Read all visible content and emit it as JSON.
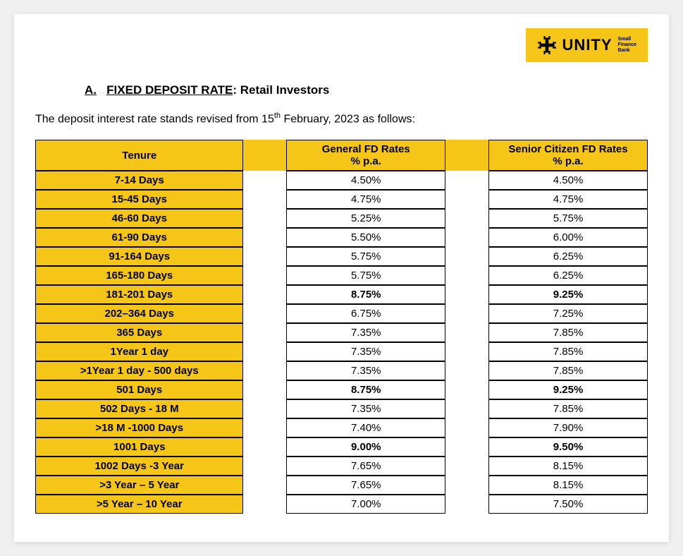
{
  "logo": {
    "brand": "UNITY",
    "subline1": "Small",
    "subline2": "Finance",
    "subline3": "Bank"
  },
  "heading": {
    "prefix": "A.",
    "title": "FIXED DEPOSIT RATE",
    "suffix": ": Retail Investors"
  },
  "intro": {
    "text_before": "The deposit interest rate stands revised from 15",
    "sup": "th",
    "text_after": " February, 2023 as follows:"
  },
  "table": {
    "headers": {
      "tenure": "Tenure",
      "general_l1": "General FD Rates",
      "general_l2": "% p.a.",
      "senior_l1": "Senior Citizen FD Rates",
      "senior_l2": "% p.a."
    },
    "rows": [
      {
        "tenure": "7-14 Days",
        "general": "4.50%",
        "senior": "4.50%",
        "bold": false
      },
      {
        "tenure": "15-45 Days",
        "general": "4.75%",
        "senior": "4.75%",
        "bold": false
      },
      {
        "tenure": "46-60 Days",
        "general": "5.25%",
        "senior": "5.75%",
        "bold": false
      },
      {
        "tenure": "61-90 Days",
        "general": "5.50%",
        "senior": "6.00%",
        "bold": false
      },
      {
        "tenure": "91-164 Days",
        "general": "5.75%",
        "senior": "6.25%",
        "bold": false
      },
      {
        "tenure": "165-180 Days",
        "general": "5.75%",
        "senior": "6.25%",
        "bold": false
      },
      {
        "tenure": "181-201 Days",
        "general": "8.75%",
        "senior": "9.25%",
        "bold": true
      },
      {
        "tenure": "202–364 Days",
        "general": "6.75%",
        "senior": "7.25%",
        "bold": false
      },
      {
        "tenure": "365 Days",
        "general": "7.35%",
        "senior": "7.85%",
        "bold": false
      },
      {
        "tenure": "1Year 1 day",
        "general": "7.35%",
        "senior": "7.85%",
        "bold": false
      },
      {
        "tenure": ">1Year 1 day - 500 days",
        "general": "7.35%",
        "senior": "7.85%",
        "bold": false
      },
      {
        "tenure": "501 Days",
        "general": "8.75%",
        "senior": "9.25%",
        "bold": true
      },
      {
        "tenure": "502 Days - 18 M",
        "general": "7.35%",
        "senior": "7.85%",
        "bold": false
      },
      {
        "tenure": ">18 M -1000 Days",
        "general": "7.40%",
        "senior": "7.90%",
        "bold": false
      },
      {
        "tenure": "1001 Days",
        "general": "9.00%",
        "senior": "9.50%",
        "bold": true
      },
      {
        "tenure": "1002 Days -3 Year",
        "general": "7.65%",
        "senior": "8.15%",
        "bold": false
      },
      {
        "tenure": ">3 Year – 5 Year",
        "general": "7.65%",
        "senior": "8.15%",
        "bold": false
      },
      {
        "tenure": ">5 Year – 10 Year",
        "general": "7.00%",
        "senior": "7.50%",
        "bold": false
      }
    ]
  },
  "colors": {
    "brand_yellow": "#f5c518",
    "page_bg": "#f0f0f0",
    "border": "#000000"
  }
}
